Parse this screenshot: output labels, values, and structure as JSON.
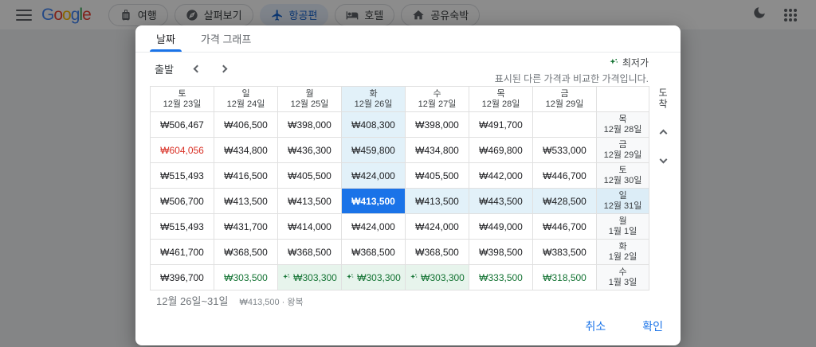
{
  "topbar": {
    "logo": "Google",
    "nav": [
      {
        "label": "여행",
        "icon": "luggage-icon",
        "active": false
      },
      {
        "label": "살펴보기",
        "icon": "explore-icon",
        "active": false
      },
      {
        "label": "항공편",
        "icon": "flight-icon",
        "active": true
      },
      {
        "label": "호텔",
        "icon": "hotel-icon",
        "active": false
      },
      {
        "label": "공유숙박",
        "icon": "house-icon",
        "active": false
      }
    ]
  },
  "dialog": {
    "tabs": [
      {
        "label": "날짜",
        "active": true
      },
      {
        "label": "가격 그래프",
        "active": false
      }
    ],
    "controls": {
      "depart_label": "출발"
    },
    "legend": {
      "title": "최저가",
      "subtitle": "표시된 다른 가격과 비교한 가격입니다."
    },
    "grid": {
      "arrival_axis_label": "도착",
      "selected_col": 3,
      "columns": [
        {
          "day": "토",
          "date": "12월 23일"
        },
        {
          "day": "일",
          "date": "12월 24일"
        },
        {
          "day": "월",
          "date": "12월 25일"
        },
        {
          "day": "화",
          "date": "12월 26일"
        },
        {
          "day": "수",
          "date": "12월 27일"
        },
        {
          "day": "목",
          "date": "12월 28일"
        },
        {
          "day": "금",
          "date": "12월 29일"
        }
      ],
      "rows": [
        {
          "day": "목",
          "date": "12월 28일",
          "selected": false,
          "prices": [
            "₩506,467",
            "₩406,500",
            "₩398,000",
            "₩408,300",
            "₩398,000",
            "₩491,700",
            ""
          ],
          "flags": [
            "",
            "",
            "",
            "colhl",
            "",
            "",
            ""
          ]
        },
        {
          "day": "금",
          "date": "12월 29일",
          "selected": false,
          "prices": [
            "₩604,056",
            "₩434,800",
            "₩436,300",
            "₩459,800",
            "₩434,800",
            "₩469,800",
            "₩533,000"
          ],
          "flags": [
            "red",
            "",
            "",
            "colhl",
            "",
            "",
            ""
          ]
        },
        {
          "day": "토",
          "date": "12월 30일",
          "selected": false,
          "prices": [
            "₩515,493",
            "₩416,500",
            "₩405,500",
            "₩424,000",
            "₩405,500",
            "₩442,000",
            "₩446,700"
          ],
          "flags": [
            "",
            "",
            "",
            "colhl",
            "",
            "",
            ""
          ]
        },
        {
          "day": "일",
          "date": "12월 31일",
          "selected": true,
          "prices": [
            "₩506,700",
            "₩413,500",
            "₩413,500",
            "₩413,500",
            "₩413,500",
            "₩443,500",
            "₩428,500"
          ],
          "flags": [
            "",
            "",
            "",
            "selected",
            "rowhl",
            "rowhl",
            "rowhl"
          ]
        },
        {
          "day": "월",
          "date": "1월 1일",
          "selected": false,
          "prices": [
            "₩515,493",
            "₩431,700",
            "₩414,000",
            "₩424,000",
            "₩424,000",
            "₩449,000",
            "₩446,700"
          ],
          "flags": [
            "",
            "",
            "",
            "",
            "",
            "",
            ""
          ]
        },
        {
          "day": "화",
          "date": "1월 2일",
          "selected": false,
          "prices": [
            "₩461,700",
            "₩368,500",
            "₩368,500",
            "₩368,500",
            "₩368,500",
            "₩398,500",
            "₩383,500"
          ],
          "flags": [
            "",
            "",
            "",
            "",
            "",
            "",
            ""
          ]
        },
        {
          "day": "수",
          "date": "1월 3일",
          "selected": false,
          "prices": [
            "₩396,700",
            "₩303,500",
            "₩303,300",
            "₩303,300",
            "₩303,300",
            "₩333,500",
            "₩318,500"
          ],
          "flags": [
            "",
            "green",
            "lowest",
            "lowest",
            "lowest",
            "green",
            "green"
          ]
        }
      ]
    },
    "summary": {
      "dates": "12월 26일~31일",
      "price": "₩413,500 · 왕복"
    },
    "actions": {
      "cancel": "취소",
      "confirm": "확인"
    }
  }
}
